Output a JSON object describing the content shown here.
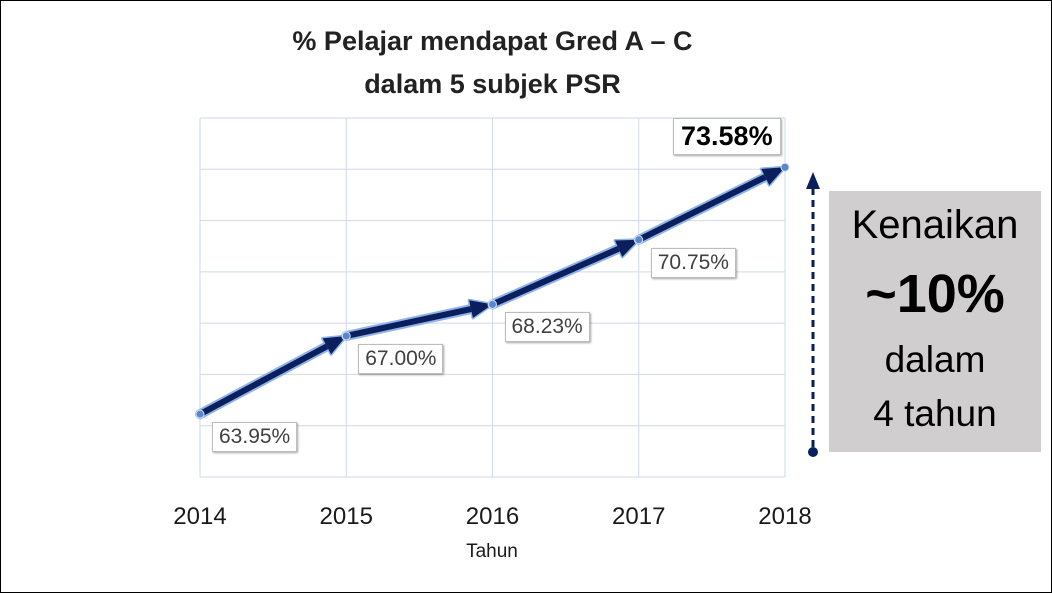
{
  "chart_data": {
    "type": "line",
    "title_line1": "% Pelajar mendapat Gred A – C",
    "title_line2": "dalam 5 subjek PSR",
    "xlabel": "Tahun",
    "ylabel": "",
    "categories": [
      "2014",
      "2015",
      "2016",
      "2017",
      "2018"
    ],
    "series": [
      {
        "values": [
          63.95,
          67.0,
          68.23,
          70.75,
          73.58
        ],
        "data_labels": [
          "63.95%",
          "67.00%",
          "68.23%",
          "70.75%",
          "73.58%"
        ]
      }
    ],
    "ylim": [
      61.5,
      75.5
    ],
    "grid": true,
    "line_color": "#0a1f5c",
    "glow_color": "#8fb3ea"
  },
  "callout": {
    "line1": "Kenaikan",
    "line2": "~10%",
    "line3": "dalam",
    "line4": "4 tahun",
    "background": "#d0cece",
    "arrow_color": "#0a1f5c"
  }
}
